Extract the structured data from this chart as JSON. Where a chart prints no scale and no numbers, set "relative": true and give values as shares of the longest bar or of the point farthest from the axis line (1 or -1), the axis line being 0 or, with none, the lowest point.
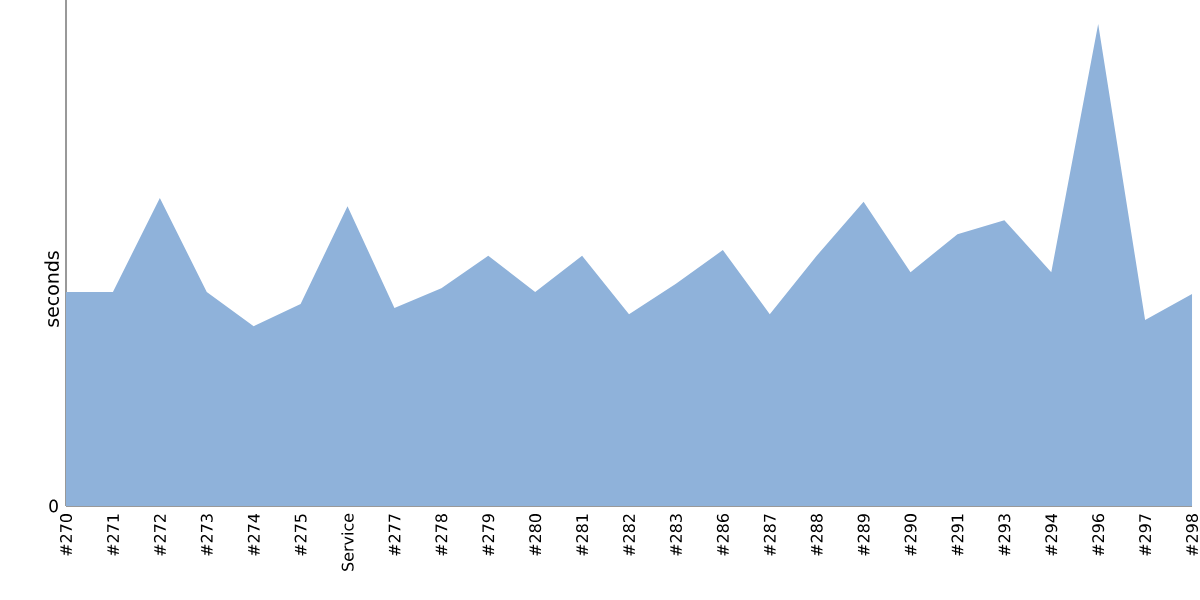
{
  "chart_data": {
    "type": "area",
    "ylabel": "seconds",
    "relative": true,
    "color": "#8fb2da",
    "categories": [
      "#270",
      "#271",
      "#272",
      "#273",
      "#274",
      "#275",
      "Service",
      "#277",
      "#278",
      "#279",
      "#280",
      "#281",
      "#282",
      "#283",
      "#286",
      "#287",
      "#288",
      "#289",
      "#290",
      "#291",
      "#293",
      "#294",
      "#296",
      "#297",
      "#298"
    ],
    "values": [
      0.444,
      0.444,
      0.639,
      0.444,
      0.373,
      0.419,
      0.622,
      0.411,
      0.452,
      0.519,
      0.444,
      0.519,
      0.398,
      0.461,
      0.531,
      0.398,
      0.519,
      0.631,
      0.485,
      0.564,
      0.593,
      0.485,
      1,
      0.386,
      0.44
    ],
    "annotations": [
      "0"
    ]
  }
}
